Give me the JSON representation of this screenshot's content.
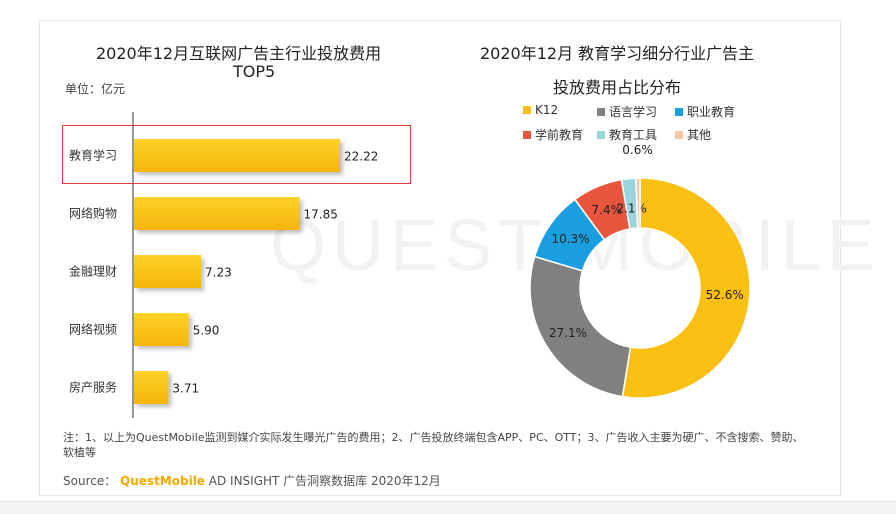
{
  "left_chart": {
    "title_line1": "2020年12月互联网广告主行业投放费用",
    "title_line2": "TOP5",
    "unit": "单位：亿元"
  },
  "right_chart": {
    "title_line1": "2020年12月 教育学习细分行业广告主",
    "title_line2": "投放费用占比分布"
  },
  "watermark": "QUEST MOBILE",
  "note": "注：1、以上为QuestMobile监测到媒介实际发生曝光广告的费用；2、广告投放终端包含APP、PC、OTT；3、广告收入主要为硬广、不含搜索、赞助、软植等",
  "source": {
    "prefix": "Source：",
    "brand": "QuestMobile",
    "rest": " AD INSIGHT 广告洞察数据库 2020年12月"
  },
  "chart_data": [
    {
      "type": "bar",
      "orientation": "horizontal",
      "title": "2020年12月互联网广告主行业投放费用 TOP5",
      "categories": [
        "教育学习",
        "网络购物",
        "金融理财",
        "网络视频",
        "房产服务"
      ],
      "values": [
        22.22,
        17.85,
        7.23,
        5.9,
        3.71
      ],
      "value_labels": [
        "22.22",
        "17.85",
        "7.23",
        "5.90",
        "3.71"
      ],
      "bar_color": "#f9bf13",
      "highlighted_category": "教育学习",
      "highlight_color": "#e0393e"
    },
    {
      "type": "pie",
      "style": "donut",
      "title": "2020年12月 教育学习细分行业广告主投放费用占比分布",
      "slices": [
        {
          "name": "K12",
          "value": 52.6,
          "label": "52.6%",
          "color": "#f9bf13"
        },
        {
          "name": "语言学习",
          "value": 27.1,
          "label": "27.1%",
          "color": "#808080"
        },
        {
          "name": "职业教育",
          "value": 10.3,
          "label": "10.3%",
          "color": "#1a9ee0"
        },
        {
          "name": "学前教育",
          "value": 7.4,
          "label": "7.4%",
          "color": "#e8553d"
        },
        {
          "name": "教育工具",
          "value": 2.1,
          "label": "2.1%",
          "color": "#9bd3de"
        },
        {
          "name": "其他",
          "value": 0.6,
          "label": "0.6%",
          "color": "#f7c6a3"
        }
      ],
      "legend_position": "top"
    }
  ]
}
